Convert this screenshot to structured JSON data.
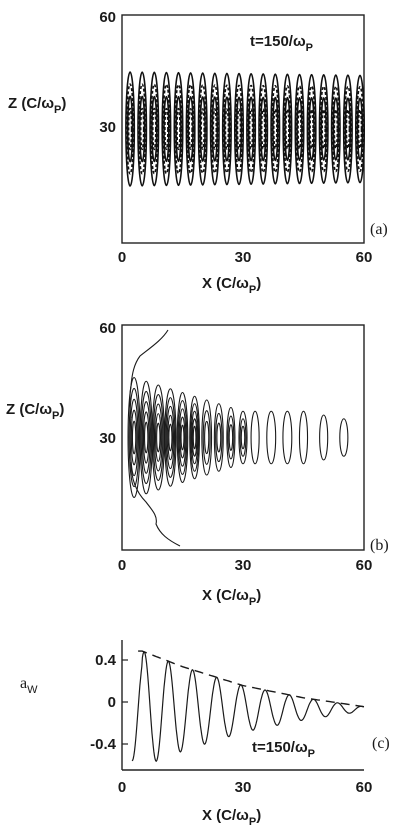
{
  "chart_data": [
    {
      "type": "contour",
      "panel_label": "(a)",
      "annotation": "t=150/ω",
      "annotation_sub": "P",
      "xlabel": "X (C/ω",
      "xlabel_sub": "P",
      "xlabel_close": ")",
      "ylabel": "Z (C/ω",
      "ylabel_sub": "P",
      "ylabel_close": ")",
      "xlim": [
        0,
        60
      ],
      "ylim": [
        0,
        60
      ],
      "x_ticks": [
        "0",
        "30",
        "60"
      ],
      "y_ticks": [
        "60",
        "30"
      ],
      "band_z_range": [
        15,
        45
      ],
      "contour_columns_x": [
        3,
        6,
        9,
        12,
        15,
        18,
        21,
        24,
        27,
        30,
        33,
        36,
        39,
        42,
        45,
        48,
        51,
        54,
        57,
        60
      ]
    },
    {
      "type": "contour",
      "panel_label": "(b)",
      "xlabel": "X (C/ω",
      "xlabel_sub": "P",
      "xlabel_close": ")",
      "ylabel": "Z (C/ω",
      "ylabel_sub": "P",
      "ylabel_close": ")",
      "xlim": [
        0,
        60
      ],
      "ylim": [
        0,
        60
      ],
      "x_ticks": [
        "0",
        "30",
        "60"
      ],
      "y_ticks": [
        "60",
        "30"
      ],
      "centre_z": 30,
      "cells": [
        {
          "x": 3,
          "hw": 1.5,
          "hh": 16
        },
        {
          "x": 6,
          "hw": 1.5,
          "hh": 15
        },
        {
          "x": 9,
          "hw": 1.5,
          "hh": 14
        },
        {
          "x": 12,
          "hw": 1.4,
          "hh": 13
        },
        {
          "x": 15,
          "hw": 1.3,
          "hh": 12
        },
        {
          "x": 18,
          "hw": 1.2,
          "hh": 11
        },
        {
          "x": 21,
          "hw": 1.2,
          "hh": 10
        },
        {
          "x": 24,
          "hw": 1.1,
          "hh": 9
        },
        {
          "x": 27,
          "hw": 1.0,
          "hh": 8
        },
        {
          "x": 30,
          "hw": 1.0,
          "hh": 7
        },
        {
          "x": 33,
          "hw": 1.0,
          "hh": 7
        },
        {
          "x": 37,
          "hw": 1.1,
          "hh": 7
        },
        {
          "x": 41,
          "hw": 1.1,
          "hh": 7
        },
        {
          "x": 45,
          "hw": 1.0,
          "hh": 7
        },
        {
          "x": 50,
          "hw": 1.0,
          "hh": 6
        },
        {
          "x": 55,
          "hw": 1.0,
          "hh": 5
        }
      ]
    },
    {
      "type": "line",
      "panel_label": "(c)",
      "annotation": "t=150/ω",
      "annotation_sub": "P",
      "ylabel": "a",
      "ylabel_sub": "W",
      "xlabel": "X (C/ω",
      "xlabel_sub": "P",
      "xlabel_close": ")",
      "xlim": [
        0,
        60
      ],
      "ylim": [
        -0.55,
        0.62
      ],
      "x_ticks": [
        "0",
        "30",
        "60"
      ],
      "y_ticks": [
        "0.4",
        "0",
        "-0.4"
      ],
      "series": [
        {
          "style": "solid",
          "wave_period": 6,
          "x_start": 2.5
        },
        {
          "style": "dashed",
          "envelope": true
        }
      ],
      "envelope_points": [
        {
          "x": 5,
          "y": 0.52
        },
        {
          "x": 15,
          "y": 0.38
        },
        {
          "x": 30,
          "y": 0.21
        },
        {
          "x": 45,
          "y": 0.1
        },
        {
          "x": 60,
          "y": 0.02
        }
      ]
    }
  ]
}
